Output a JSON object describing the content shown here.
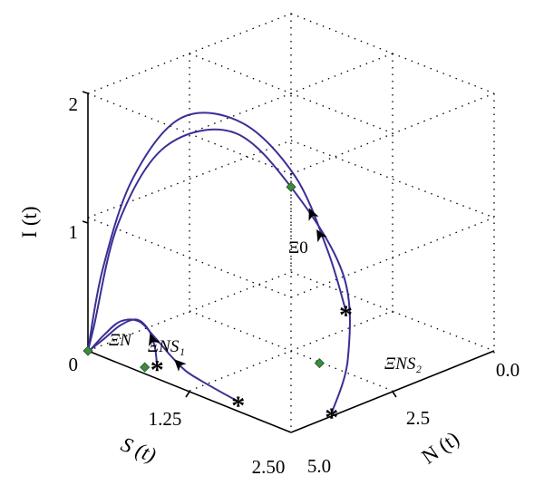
{
  "chart_data": {
    "type": "line",
    "projection": "3d",
    "axes": {
      "S": {
        "label": "S (t)",
        "range": [
          0,
          2.5
        ],
        "ticks": [
          "0.00",
          "1.25",
          "2.50"
        ]
      },
      "N": {
        "label": "N (t)",
        "range": [
          0,
          5
        ],
        "ticks": [
          "0.0",
          "2.5",
          "5.0"
        ]
      },
      "I": {
        "label": "I (t)",
        "range": [
          0,
          2
        ],
        "ticks": [
          "0",
          "1",
          "2"
        ]
      }
    },
    "grid": true,
    "box": true,
    "equilibria": [
      {
        "label": "Ξ0",
        "S": 1.25,
        "N": 2.5,
        "I": 1.28,
        "color": "#3c8c3c"
      },
      {
        "label": "ΞN",
        "S": 0.0,
        "N": 0.0,
        "I": 0.0,
        "color": "#3c8c3c"
      },
      {
        "label": "ΞNS₁",
        "S": 0.6,
        "N": 0.2,
        "I": 0.0,
        "color": "#3c8c3c"
      },
      {
        "label": "ΞNS₂",
        "S": 1.6,
        "N": 2.5,
        "I": 0.0,
        "color": "#3c8c3c"
      }
    ],
    "series": [
      {
        "start": {
          "S": 0.65,
          "N": 0.4,
          "I": 0.0
        },
        "points": [
          [
            0.65,
            0.4,
            0.0
          ],
          [
            0.6,
            0.45,
            0.12
          ],
          [
            0.55,
            0.4,
            0.25
          ],
          [
            0.45,
            0.3,
            0.32
          ],
          [
            0.3,
            0.2,
            0.25
          ],
          [
            0.15,
            0.1,
            0.12
          ],
          [
            0.03,
            0.02,
            0.02
          ]
        ]
      },
      {
        "start": {
          "S": 1.7,
          "N": 0.3,
          "I": 0.0
        },
        "points": [
          [
            1.7,
            0.3,
            0.0
          ],
          [
            1.2,
            0.4,
            0.02
          ],
          [
            0.9,
            0.6,
            0.0
          ],
          [
            0.75,
            0.55,
            0.08
          ],
          [
            0.6,
            0.45,
            0.2
          ],
          [
            0.45,
            0.35,
            0.3
          ],
          [
            0.3,
            0.2,
            0.28
          ],
          [
            0.15,
            0.1,
            0.15
          ],
          [
            0.03,
            0.02,
            0.02
          ]
        ]
      },
      {
        "start": {
          "S": 2.45,
          "N": 1.1,
          "I": 0.0
        },
        "points": [
          [
            2.45,
            1.1,
            0.0
          ],
          [
            2.3,
            1.8,
            0.3
          ],
          [
            2.0,
            2.3,
            0.8
          ],
          [
            1.5,
            2.1,
            1.35
          ],
          [
            1.0,
            1.6,
            1.75
          ],
          [
            0.5,
            0.9,
            1.6
          ],
          [
            0.2,
            0.35,
            1.0
          ],
          [
            0.05,
            0.05,
            0.2
          ],
          [
            0.0,
            0.0,
            0.0
          ]
        ]
      },
      {
        "start": {
          "S": 0.95,
          "N": 4.45,
          "I": 0.0
        },
        "points": [
          [
            0.95,
            4.45,
            0.0
          ],
          [
            0.9,
            4.1,
            0.5
          ],
          [
            0.75,
            3.6,
            1.1
          ],
          [
            0.5,
            2.8,
            1.55
          ],
          [
            0.25,
            1.8,
            1.65
          ],
          [
            0.1,
            0.9,
            1.25
          ],
          [
            0.03,
            0.3,
            0.6
          ],
          [
            0.0,
            0.0,
            0.0
          ]
        ]
      }
    ],
    "start_marker": "*",
    "line_color": "#3a2f95"
  }
}
